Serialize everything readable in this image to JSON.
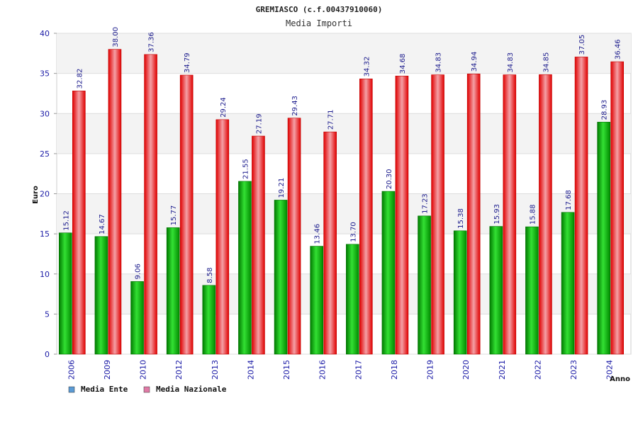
{
  "chart_data": {
    "type": "bar",
    "title": "GREMIASCO (c.f.00437910060)",
    "subtitle": "Media Importi",
    "xlabel": "Anno",
    "ylabel": "Euro",
    "ylim": [
      0,
      40
    ],
    "yticks": [
      0,
      5,
      10,
      15,
      20,
      25,
      30,
      35,
      40
    ],
    "grid": true,
    "legend_position": "bottom-left",
    "categories": [
      "2006",
      "2009",
      "2010",
      "2012",
      "2013",
      "2014",
      "2015",
      "2016",
      "2017",
      "2018",
      "2019",
      "2020",
      "2021",
      "2022",
      "2023",
      "2024"
    ],
    "series": [
      {
        "name": "Media Ente",
        "color": "#00b800",
        "legend_color": "#5b9bd5",
        "values": [
          15.12,
          14.67,
          9.06,
          15.77,
          8.58,
          21.55,
          19.21,
          13.46,
          13.7,
          20.3,
          17.23,
          15.38,
          15.93,
          15.88,
          17.68,
          28.93
        ],
        "labels": [
          "15.12",
          "14.67",
          "9.06",
          "15.77",
          "8.58",
          "21.55",
          "19.21",
          "13.46",
          "13.70",
          "20.30",
          "17.23",
          "15.38",
          "15.93",
          "15.88",
          "17.68",
          "28.93"
        ]
      },
      {
        "name": "Media Nazionale",
        "color": "#ee1111",
        "legend_color": "#e07aa6",
        "values": [
          32.82,
          38.0,
          37.36,
          34.79,
          29.24,
          27.19,
          29.43,
          27.71,
          34.32,
          34.68,
          34.83,
          34.94,
          34.83,
          34.85,
          37.05,
          36.46
        ],
        "labels": [
          "32.82",
          "38.00",
          "37.36",
          "34.79",
          "29.24",
          "27.19",
          "29.43",
          "27.71",
          "34.32",
          "34.68",
          "34.83",
          "34.94",
          "34.83",
          "34.85",
          "37.05",
          "36.46"
        ]
      }
    ]
  }
}
